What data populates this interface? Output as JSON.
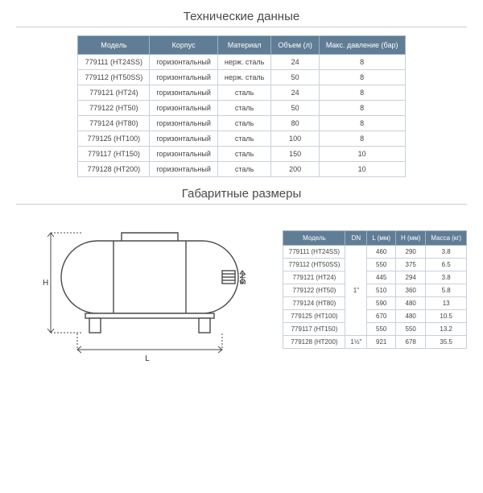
{
  "titles": {
    "tech": "Технические данные",
    "dims": "Габаритные размеры"
  },
  "techTable": {
    "columns": [
      "Модель",
      "Корпус",
      "Материал",
      "Объем (л)",
      "Макс. давление (бар)"
    ],
    "rows": [
      [
        "779111 (HT24SS)",
        "горизонтальный",
        "нерж. сталь",
        "24",
        "8"
      ],
      [
        "779112 (HT50SS)",
        "горизонтальный",
        "нерж. сталь",
        "50",
        "8"
      ],
      [
        "779121 (HT24)",
        "горизонтальный",
        "сталь",
        "24",
        "8"
      ],
      [
        "779122 (HT50)",
        "горизонтальный",
        "сталь",
        "50",
        "8"
      ],
      [
        "779124 (HT80)",
        "горизонтальный",
        "сталь",
        "80",
        "8"
      ],
      [
        "779125 (HT100)",
        "горизонтальный",
        "сталь",
        "100",
        "8"
      ],
      [
        "779117 (HT150)",
        "горизонтальный",
        "сталь",
        "150",
        "10"
      ],
      [
        "779128 (HT200)",
        "горизонтальный",
        "сталь",
        "200",
        "10"
      ]
    ],
    "header_bg": "#607d96",
    "header_fg": "#ffffff",
    "border_color": "#c8d2da"
  },
  "dimsTable": {
    "columns": [
      "Модель",
      "DN",
      "L (мм)",
      "H (мм)",
      "Масса (кг)"
    ],
    "dn_groups": [
      {
        "value": "1\"",
        "span": 7
      },
      {
        "value": "1½\"",
        "span": 1
      }
    ],
    "rows": [
      [
        "779111 (HT24SS)",
        "460",
        "290",
        "3.8"
      ],
      [
        "779112 (HT50SS)",
        "550",
        "375",
        "6.5"
      ],
      [
        "779121 (HT24)",
        "445",
        "294",
        "3.8"
      ],
      [
        "779122 (HT50)",
        "510",
        "360",
        "5.8"
      ],
      [
        "779124 (HT80)",
        "590",
        "480",
        "13"
      ],
      [
        "779125 (HT100)",
        "670",
        "480",
        "10.5"
      ],
      [
        "779117 (HT150)",
        "550",
        "550",
        "13.2"
      ],
      [
        "779128 (HT200)",
        "921",
        "678",
        "35.5"
      ]
    ],
    "header_bg": "#607d96",
    "header_fg": "#ffffff",
    "border_color": "#c8d2da"
  },
  "diagram": {
    "labels": {
      "L": "L",
      "H": "H",
      "DN": "DN"
    },
    "stroke": "#4a4a4a",
    "fill": "#ffffff"
  }
}
